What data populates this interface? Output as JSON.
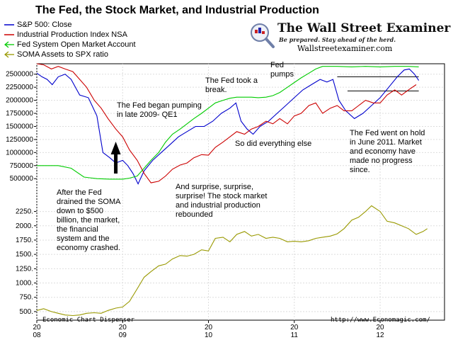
{
  "title": "The Fed, the Stock Market, and Industrial Production",
  "legend": [
    {
      "label": "S&P 500: Close",
      "color": "#0000cc"
    },
    {
      "label": "Industrial Production Index NSA",
      "color": "#cc0000"
    },
    {
      "label": "Fed System Open Market Account",
      "color": "#00cc00"
    },
    {
      "label": "SOMA  Assets to SPX ratio",
      "color": "#999900"
    }
  ],
  "logo": {
    "name": "The Wall Street Examiner",
    "tagline": "Be prepared. Stay ahead of the herd.",
    "url": "Wallstreetexaminer.com",
    "icon": "magnifier-icon"
  },
  "annotations": [
    "The Fed began pumping in late 2009- QE1",
    "The Fed took a break.",
    "Fed pumps",
    "So did everything else",
    "The Fed went on hold in June 2011. Market and economy have made no progress since.",
    "After the Fed drained the SOMA down to $500 billion, the market, the financial system and the economy crashed.",
    "And surprise, surprise, surprise! The stock market and industrial production rebounded"
  ],
  "footer": {
    "left": "Economic Chart Dispenser",
    "right": "http://www.Economagic.com/"
  },
  "chart_data": {
    "type": "line",
    "x_tick_labels": [
      "2008",
      "2009",
      "2010",
      "2011",
      "2012"
    ],
    "x_range": [
      2008.0,
      2012.75
    ],
    "upper_panel": {
      "y_range": [
        340000,
        2700000
      ],
      "y_ticks": [
        500000,
        750000,
        1000000,
        1250000,
        1500000,
        1750000,
        2000000,
        2250000,
        2500000
      ],
      "y_tick_labels": [
        "500000",
        "750000",
        "1000000",
        "1250000",
        "1500000",
        "1750000",
        "2000000",
        "2250000",
        "2500000"
      ],
      "series": [
        {
          "name": "S&P 500: Close",
          "color": "#0000cc",
          "points": [
            [
              2008.0,
              2520000
            ],
            [
              2008.06,
              2450000
            ],
            [
              2008.12,
              2400000
            ],
            [
              2008.18,
              2300000
            ],
            [
              2008.25,
              2450000
            ],
            [
              2008.33,
              2500000
            ],
            [
              2008.4,
              2400000
            ],
            [
              2008.5,
              2100000
            ],
            [
              2008.6,
              2050000
            ],
            [
              2008.7,
              1700000
            ],
            [
              2008.77,
              1000000
            ],
            [
              2008.85,
              900000
            ],
            [
              2008.92,
              800000
            ],
            [
              2009.0,
              850000
            ],
            [
              2009.06,
              750000
            ],
            [
              2009.12,
              600000
            ],
            [
              2009.18,
              400000
            ],
            [
              2009.25,
              650000
            ],
            [
              2009.35,
              850000
            ],
            [
              2009.45,
              1000000
            ],
            [
              2009.55,
              1150000
            ],
            [
              2009.65,
              1300000
            ],
            [
              2009.75,
              1400000
            ],
            [
              2009.85,
              1500000
            ],
            [
              2009.95,
              1500000
            ],
            [
              2010.05,
              1600000
            ],
            [
              2010.15,
              1750000
            ],
            [
              2010.25,
              1850000
            ],
            [
              2010.32,
              1950000
            ],
            [
              2010.38,
              1600000
            ],
            [
              2010.45,
              1450000
            ],
            [
              2010.52,
              1350000
            ],
            [
              2010.6,
              1500000
            ],
            [
              2010.7,
              1600000
            ],
            [
              2010.8,
              1750000
            ],
            [
              2010.9,
              1900000
            ],
            [
              2011.0,
              2050000
            ],
            [
              2011.1,
              2200000
            ],
            [
              2011.2,
              2300000
            ],
            [
              2011.3,
              2400000
            ],
            [
              2011.38,
              2350000
            ],
            [
              2011.45,
              2400000
            ],
            [
              2011.52,
              2000000
            ],
            [
              2011.6,
              1800000
            ],
            [
              2011.7,
              1650000
            ],
            [
              2011.8,
              1750000
            ],
            [
              2011.9,
              1900000
            ],
            [
              2012.0,
              2050000
            ],
            [
              2012.1,
              2250000
            ],
            [
              2012.2,
              2450000
            ],
            [
              2012.28,
              2580000
            ],
            [
              2012.34,
              2600000
            ],
            [
              2012.4,
              2500000
            ],
            [
              2012.45,
              2380000
            ]
          ]
        },
        {
          "name": "Industrial Production Index NSA",
          "color": "#cc0000",
          "points": [
            [
              2008.0,
              2700000
            ],
            [
              2008.08,
              2680000
            ],
            [
              2008.17,
              2600000
            ],
            [
              2008.25,
              2650000
            ],
            [
              2008.33,
              2600000
            ],
            [
              2008.42,
              2550000
            ],
            [
              2008.5,
              2400000
            ],
            [
              2008.58,
              2250000
            ],
            [
              2008.67,
              2000000
            ],
            [
              2008.75,
              1850000
            ],
            [
              2008.83,
              1650000
            ],
            [
              2008.92,
              1450000
            ],
            [
              2009.0,
              1300000
            ],
            [
              2009.08,
              1050000
            ],
            [
              2009.17,
              850000
            ],
            [
              2009.25,
              600000
            ],
            [
              2009.33,
              420000
            ],
            [
              2009.42,
              450000
            ],
            [
              2009.5,
              550000
            ],
            [
              2009.58,
              680000
            ],
            [
              2009.67,
              760000
            ],
            [
              2009.75,
              800000
            ],
            [
              2009.83,
              900000
            ],
            [
              2009.92,
              960000
            ],
            [
              2010.0,
              950000
            ],
            [
              2010.08,
              1100000
            ],
            [
              2010.17,
              1200000
            ],
            [
              2010.25,
              1300000
            ],
            [
              2010.33,
              1400000
            ],
            [
              2010.42,
              1350000
            ],
            [
              2010.5,
              1450000
            ],
            [
              2010.58,
              1500000
            ],
            [
              2010.67,
              1600000
            ],
            [
              2010.75,
              1550000
            ],
            [
              2010.83,
              1650000
            ],
            [
              2010.92,
              1550000
            ],
            [
              2011.0,
              1700000
            ],
            [
              2011.08,
              1750000
            ],
            [
              2011.17,
              1900000
            ],
            [
              2011.25,
              1950000
            ],
            [
              2011.33,
              1750000
            ],
            [
              2011.42,
              1850000
            ],
            [
              2011.5,
              1900000
            ],
            [
              2011.58,
              1800000
            ],
            [
              2011.67,
              1800000
            ],
            [
              2011.75,
              1900000
            ],
            [
              2011.83,
              2000000
            ],
            [
              2011.92,
              1950000
            ],
            [
              2012.0,
              1950000
            ],
            [
              2012.08,
              2100000
            ],
            [
              2012.17,
              2200000
            ],
            [
              2012.25,
              2100000
            ],
            [
              2012.33,
              2200000
            ],
            [
              2012.42,
              2300000
            ]
          ]
        },
        {
          "name": "Fed System Open Market Account",
          "color": "#00cc00",
          "points": [
            [
              2008.0,
              750000
            ],
            [
              2008.25,
              750000
            ],
            [
              2008.4,
              700000
            ],
            [
              2008.55,
              530000
            ],
            [
              2008.7,
              500000
            ],
            [
              2008.85,
              490000
            ],
            [
              2009.0,
              490000
            ],
            [
              2009.08,
              510000
            ],
            [
              2009.17,
              550000
            ],
            [
              2009.25,
              700000
            ],
            [
              2009.33,
              850000
            ],
            [
              2009.42,
              1000000
            ],
            [
              2009.5,
              1200000
            ],
            [
              2009.58,
              1350000
            ],
            [
              2009.67,
              1450000
            ],
            [
              2009.75,
              1550000
            ],
            [
              2009.83,
              1650000
            ],
            [
              2009.92,
              1750000
            ],
            [
              2010.0,
              1850000
            ],
            [
              2010.08,
              1950000
            ],
            [
              2010.17,
              2000000
            ],
            [
              2010.25,
              2040000
            ],
            [
              2010.33,
              2060000
            ],
            [
              2010.42,
              2060000
            ],
            [
              2010.5,
              2060000
            ],
            [
              2010.58,
              2050000
            ],
            [
              2010.67,
              2060000
            ],
            [
              2010.75,
              2090000
            ],
            [
              2010.83,
              2150000
            ],
            [
              2010.92,
              2250000
            ],
            [
              2011.0,
              2340000
            ],
            [
              2011.08,
              2430000
            ],
            [
              2011.17,
              2520000
            ],
            [
              2011.25,
              2600000
            ],
            [
              2011.33,
              2650000
            ],
            [
              2011.42,
              2650000
            ],
            [
              2011.5,
              2650000
            ],
            [
              2011.67,
              2640000
            ],
            [
              2011.83,
              2650000
            ],
            [
              2012.0,
              2640000
            ],
            [
              2012.17,
              2650000
            ],
            [
              2012.33,
              2650000
            ],
            [
              2012.45,
              2640000
            ]
          ]
        }
      ]
    },
    "lower_panel": {
      "y_range": [
        350,
        2480
      ],
      "y_ticks": [
        500,
        750,
        1000,
        1250,
        1500,
        1750,
        2000,
        2250
      ],
      "y_tick_labels": [
        "500.",
        "750.",
        "1000.",
        "1250.",
        "1500.",
        "1750.",
        "2000.",
        "2250."
      ],
      "series": [
        {
          "name": "SOMA  Assets to SPX ratio",
          "color": "#999900",
          "points": [
            [
              2008.0,
              520
            ],
            [
              2008.08,
              550
            ],
            [
              2008.17,
              500
            ],
            [
              2008.25,
              470
            ],
            [
              2008.33,
              440
            ],
            [
              2008.42,
              430
            ],
            [
              2008.5,
              440
            ],
            [
              2008.58,
              470
            ],
            [
              2008.67,
              480
            ],
            [
              2008.75,
              470
            ],
            [
              2008.83,
              520
            ],
            [
              2008.92,
              560
            ],
            [
              2009.0,
              580
            ],
            [
              2009.08,
              680
            ],
            [
              2009.17,
              900
            ],
            [
              2009.25,
              1100
            ],
            [
              2009.33,
              1200
            ],
            [
              2009.42,
              1300
            ],
            [
              2009.5,
              1330
            ],
            [
              2009.58,
              1420
            ],
            [
              2009.67,
              1480
            ],
            [
              2009.75,
              1470
            ],
            [
              2009.83,
              1500
            ],
            [
              2009.92,
              1580
            ],
            [
              2010.0,
              1560
            ],
            [
              2010.08,
              1780
            ],
            [
              2010.17,
              1800
            ],
            [
              2010.25,
              1720
            ],
            [
              2010.33,
              1850
            ],
            [
              2010.42,
              1900
            ],
            [
              2010.5,
              1820
            ],
            [
              2010.58,
              1850
            ],
            [
              2010.67,
              1780
            ],
            [
              2010.75,
              1800
            ],
            [
              2010.83,
              1780
            ],
            [
              2010.92,
              1720
            ],
            [
              2011.0,
              1730
            ],
            [
              2011.08,
              1720
            ],
            [
              2011.17,
              1740
            ],
            [
              2011.25,
              1780
            ],
            [
              2011.33,
              1800
            ],
            [
              2011.42,
              1820
            ],
            [
              2011.5,
              1860
            ],
            [
              2011.58,
              1950
            ],
            [
              2011.67,
              2100
            ],
            [
              2011.75,
              2150
            ],
            [
              2011.83,
              2250
            ],
            [
              2011.9,
              2350
            ],
            [
              2012.0,
              2250
            ],
            [
              2012.08,
              2080
            ],
            [
              2012.17,
              2050
            ],
            [
              2012.25,
              2000
            ],
            [
              2012.33,
              1950
            ],
            [
              2012.42,
              1850
            ],
            [
              2012.5,
              1900
            ],
            [
              2012.55,
              1950
            ]
          ]
        }
      ]
    },
    "reference_lines": [
      {
        "y": 2450000,
        "x_range": [
          2011.5,
          2012.45
        ],
        "color": "#000000"
      },
      {
        "y": 2180000,
        "x_range": [
          2011.62,
          2012.45
        ],
        "color": "#000000"
      }
    ],
    "up_arrow_x": 2008.92
  }
}
